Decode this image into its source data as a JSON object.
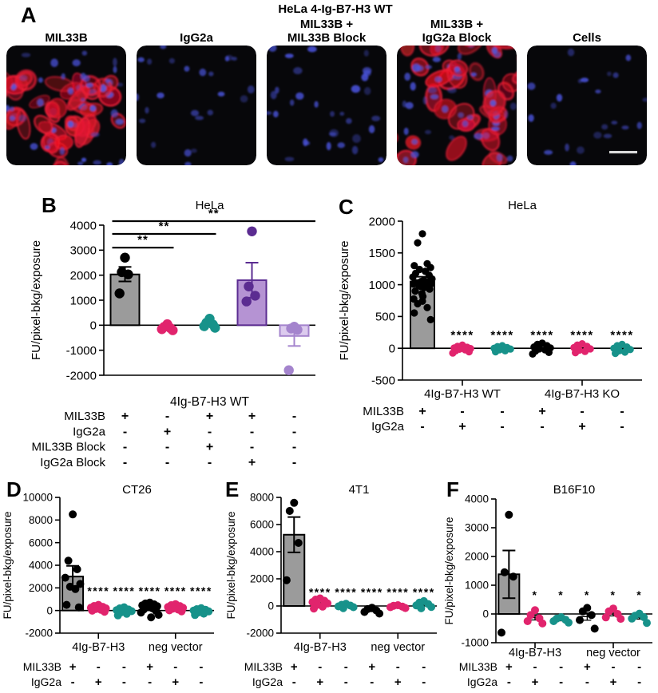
{
  "panel_a": {
    "label": "A",
    "title": "HeLa 4-Ig-B7-H3 WT",
    "images": [
      {
        "label_lines": [
          "MIL33B"
        ],
        "stain": "red+blue",
        "red_cells": 42,
        "blue_nuclei": 26,
        "seed": 11,
        "scale_bar": false
      },
      {
        "label_lines": [
          "IgG2a"
        ],
        "stain": "blue",
        "red_cells": 0,
        "blue_nuclei": 24,
        "seed": 22,
        "scale_bar": false
      },
      {
        "label_lines": [
          "MIL33B +",
          "MIL33B Block"
        ],
        "stain": "blue",
        "red_cells": 0,
        "blue_nuclei": 32,
        "seed": 33,
        "scale_bar": false
      },
      {
        "label_lines": [
          "MIL33B +",
          "IgG2a Block"
        ],
        "stain": "red+blue",
        "red_cells": 40,
        "blue_nuclei": 24,
        "seed": 44,
        "scale_bar": false
      },
      {
        "label_lines": [
          "Cells"
        ],
        "stain": "blue",
        "red_cells": 0,
        "blue_nuclei": 22,
        "seed": 55,
        "scale_bar": true
      }
    ]
  },
  "colors": {
    "black": "#000000",
    "gray_bar_fill": "#9B9B9B",
    "pink": "#E1246D",
    "teal": "#17928A",
    "purple_dark": "#5B2C91",
    "purple_bar_fill": "#B593D3",
    "purple_light": "#A484CD",
    "purple_light_fill": "#DCCBEE",
    "red_stain": "#E8192C",
    "blue_stain": "#4C56D8"
  },
  "chart_data": [
    {
      "panel": "B",
      "type": "bar",
      "title": "HeLa",
      "ylabel": "FU/pixel-bkg/exposure",
      "xlabel": "4Ig-B7-H3 WT",
      "ylim": [
        -2000,
        4000
      ],
      "yticks": [
        4000,
        3000,
        2000,
        1000,
        0,
        -1000,
        -2000
      ],
      "xgroups": [
        {
          "label": "4Ig-B7-H3 WT",
          "cols": [
            0,
            4
          ],
          "tick": false
        }
      ],
      "columns": [
        {
          "bar": 2030,
          "err": [
            1750,
            2330
          ],
          "fill": "#9B9B9B",
          "stroke": "#000000",
          "dot": "#000000",
          "points": [
            2700,
            2120,
            2030,
            1270
          ]
        },
        {
          "dot": "#E1246D",
          "points": [
            40,
            -70,
            -120,
            -160,
            -200
          ]
        },
        {
          "dot": "#17928A",
          "points": [
            260,
            100,
            30,
            -40,
            -100
          ]
        },
        {
          "bar": 1800,
          "err": [
            1100,
            2500
          ],
          "fill": "#B593D3",
          "stroke": "#5B2C91",
          "dot": "#5B2C91",
          "points": [
            3750,
            1550,
            1180,
            950
          ]
        },
        {
          "bar": -430,
          "err": [
            -830,
            -60
          ],
          "fill": "#DCCBEE",
          "stroke": "#A484CD",
          "dot": "#A484CD",
          "points": [
            -60,
            -130,
            -180,
            -1800
          ]
        }
      ],
      "sig_lines": [
        {
          "from": 0,
          "to": 1,
          "y": 3100,
          "label": "**"
        },
        {
          "from": 0,
          "to": 2,
          "y": 3650,
          "label": "**"
        },
        {
          "from": 0,
          "to": "right",
          "y": 4160,
          "label": "**"
        }
      ],
      "conditions": [
        {
          "label": "MIL33B",
          "values": [
            "+",
            "-",
            "+",
            "+",
            "-"
          ]
        },
        {
          "label": "IgG2a",
          "values": [
            "-",
            "+",
            "-",
            "-",
            "-"
          ]
        },
        {
          "label": "MIL33B Block",
          "values": [
            "-",
            "-",
            "+",
            "-",
            "-"
          ]
        },
        {
          "label": "IgG2a Block",
          "values": [
            "-",
            "-",
            "-",
            "+",
            "-"
          ]
        }
      ]
    },
    {
      "panel": "C",
      "type": "bar",
      "title": "HeLa",
      "ylabel": "FU/pixel-bkg/exposure",
      "ylim": [
        -500,
        2000
      ],
      "yticks": [
        2000,
        1500,
        1000,
        500,
        0,
        -500
      ],
      "sig_y": 150,
      "xgroups": [
        {
          "label": "4Ig-B7-H3 WT",
          "cols": [
            0,
            2
          ],
          "tick": true
        },
        {
          "label": "4Ig-B7-H3 KO",
          "cols": [
            3,
            5
          ],
          "tick": true
        }
      ],
      "columns": [
        {
          "bar": 1050,
          "err": [
            975,
            1125
          ],
          "fill": "#9B9B9B",
          "stroke": "#000000",
          "dot": "#000000",
          "points": [
            1800,
            1660,
            1330,
            1300,
            1270,
            1240,
            1210,
            1180,
            1150,
            1120,
            1090,
            1070,
            1050,
            1040,
            1030,
            1020,
            1010,
            1000,
            990,
            975,
            955,
            930,
            900,
            860,
            815,
            775,
            740,
            700,
            640,
            555,
            450
          ]
        },
        {
          "dot": "#E1246D",
          "sig": "****",
          "points": [
            50,
            30,
            15,
            5,
            -5,
            -15,
            -25,
            -40,
            -55,
            -75
          ]
        },
        {
          "dot": "#17928A",
          "sig": "****",
          "points": [
            40,
            25,
            10,
            0,
            -12,
            -25,
            -40,
            -55
          ]
        },
        {
          "dot": "#000000",
          "sig": "****",
          "points": [
            80,
            60,
            40,
            20,
            5,
            -10,
            -25,
            -45,
            -65,
            -90
          ]
        },
        {
          "dot": "#E1246D",
          "sig": "****",
          "points": [
            70,
            50,
            30,
            10,
            -10,
            -30,
            -50,
            -70
          ]
        },
        {
          "dot": "#17928A",
          "sig": "****",
          "points": [
            60,
            40,
            20,
            0,
            -20,
            -40,
            -60,
            -80
          ]
        }
      ],
      "conditions": [
        {
          "label": "MIL33B",
          "values": [
            "+",
            "-",
            "-",
            "+",
            "-",
            "-"
          ]
        },
        {
          "label": "IgG2a",
          "values": [
            "-",
            "+",
            "-",
            "-",
            "+",
            "-"
          ]
        }
      ]
    },
    {
      "panel": "D",
      "type": "bar",
      "title": "CT26",
      "ylabel": "FU/pixel-bkg/exposure",
      "ylim": [
        -2000,
        10000
      ],
      "yticks": [
        10000,
        8000,
        6000,
        4000,
        2000,
        0,
        -2000
      ],
      "sig_y": 1400,
      "xgroups": [
        {
          "label": "4Ig-B7-H3",
          "cols": [
            0,
            2
          ],
          "tick": true
        },
        {
          "label": "neg vector",
          "cols": [
            3,
            5
          ],
          "tick": true
        }
      ],
      "columns": [
        {
          "bar": 3000,
          "err": [
            2100,
            3950
          ],
          "fill": "#9B9B9B",
          "stroke": "#000000",
          "dot": "#000000",
          "points": [
            8500,
            4400,
            3650,
            2900,
            2350,
            2100,
            1900,
            500,
            280
          ]
        },
        {
          "dot": "#E1246D",
          "sig": "****",
          "points": [
            500,
            400,
            320,
            250,
            190,
            130,
            60,
            -20,
            -110
          ]
        },
        {
          "dot": "#17928A",
          "sig": "****",
          "points": [
            290,
            190,
            90,
            30,
            -60,
            -160,
            -290,
            -430
          ]
        },
        {
          "dot": "#000000",
          "sig": "****",
          "points": [
            700,
            620,
            540,
            460,
            380,
            290,
            190,
            80,
            -30,
            -180,
            -380,
            -600
          ]
        },
        {
          "dot": "#E1246D",
          "sig": "****",
          "points": [
            560,
            470,
            390,
            310,
            240,
            160,
            80,
            10,
            -70
          ]
        },
        {
          "dot": "#17928A",
          "sig": "****",
          "points": [
            200,
            120,
            60,
            0,
            -80,
            -170,
            -280,
            -400
          ]
        }
      ],
      "conditions": [
        {
          "label": "MIL33B",
          "values": [
            "+",
            "-",
            "-",
            "+",
            "-",
            "-"
          ]
        },
        {
          "label": "IgG2a",
          "values": [
            "-",
            "+",
            "-",
            "-",
            "+",
            "-"
          ]
        }
      ]
    },
    {
      "panel": "E",
      "type": "bar",
      "title": "4T1",
      "ylabel": "FU/pixel-bkg/exposure",
      "ylim": [
        -2000,
        8000
      ],
      "yticks": [
        8000,
        6000,
        4000,
        2000,
        0,
        -2000
      ],
      "sig_y": 750,
      "xgroups": [
        {
          "label": "4Ig-B7-H3",
          "cols": [
            0,
            2
          ],
          "tick": true
        },
        {
          "label": "neg vector",
          "cols": [
            3,
            5
          ],
          "tick": true
        }
      ],
      "columns": [
        {
          "bar": 5250,
          "err": [
            3950,
            6550
          ],
          "fill": "#9B9B9B",
          "stroke": "#000000",
          "dot": "#000000",
          "points": [
            7600,
            7000,
            4650,
            1900
          ]
        },
        {
          "dot": "#E1246D",
          "sig": "****",
          "points": [
            560,
            470,
            380,
            290,
            190,
            80,
            -50,
            -190
          ]
        },
        {
          "dot": "#17928A",
          "sig": "****",
          "points": [
            160,
            90,
            30,
            -30,
            -90,
            -160
          ]
        },
        {
          "dot": "#000000",
          "sig": "****",
          "points": [
            -130,
            -230,
            -330,
            -440,
            -560
          ]
        },
        {
          "dot": "#E1246D",
          "sig": "****",
          "points": [
            60,
            10,
            -40,
            -90,
            -150
          ]
        },
        {
          "dot": "#17928A",
          "sig": "****",
          "points": [
            360,
            250,
            140,
            40,
            -70,
            -170
          ]
        }
      ],
      "conditions": [
        {
          "label": "MIL33B",
          "values": [
            "+",
            "-",
            "-",
            "+",
            "-",
            "-"
          ]
        },
        {
          "label": "IgG2a",
          "values": [
            "-",
            "+",
            "-",
            "-",
            "+",
            "-"
          ]
        }
      ]
    },
    {
      "panel": "F",
      "type": "bar",
      "title": "B16F10",
      "ylabel": "FU/pixel-bkg/exposure",
      "ylim": [
        -1000,
        4000
      ],
      "yticks": [
        4000,
        3000,
        2000,
        1000,
        0,
        -1000
      ],
      "sig_y": 530,
      "xgroups": [
        {
          "label": "4Ig-B7-H3",
          "cols": [
            0,
            2
          ],
          "tick": true
        },
        {
          "label": "neg vector",
          "cols": [
            3,
            5
          ],
          "tick": true
        }
      ],
      "columns": [
        {
          "bar": 1380,
          "err": [
            550,
            2210
          ],
          "fill": "#9B9B9B",
          "stroke": "#000000",
          "dot": "#000000",
          "points": [
            3450,
            1450,
            1300,
            -650
          ]
        },
        {
          "dot": "#E1246D",
          "sig": "*",
          "points": [
            130,
            -40,
            -150,
            -250,
            -330
          ]
        },
        {
          "dot": "#17928A",
          "sig": "*",
          "points": [
            -110,
            -160,
            -200,
            -250,
            -300
          ]
        },
        {
          "dot": "#000000",
          "sig": "*",
          "points": [
            210,
            90,
            -40,
            -210,
            -510
          ]
        },
        {
          "dot": "#E1246D",
          "sig": "*",
          "points": [
            190,
            90,
            0,
            -120,
            -170
          ]
        },
        {
          "dot": "#17928A",
          "sig": "*",
          "points": [
            10,
            -60,
            -110,
            -160,
            -310
          ]
        }
      ],
      "conditions": [
        {
          "label": "MIL33B",
          "values": [
            "+",
            "-",
            "-",
            "+",
            "-",
            "-"
          ]
        },
        {
          "label": "IgG2a",
          "values": [
            "-",
            "+",
            "-",
            "-",
            "+",
            "-"
          ]
        }
      ]
    }
  ]
}
